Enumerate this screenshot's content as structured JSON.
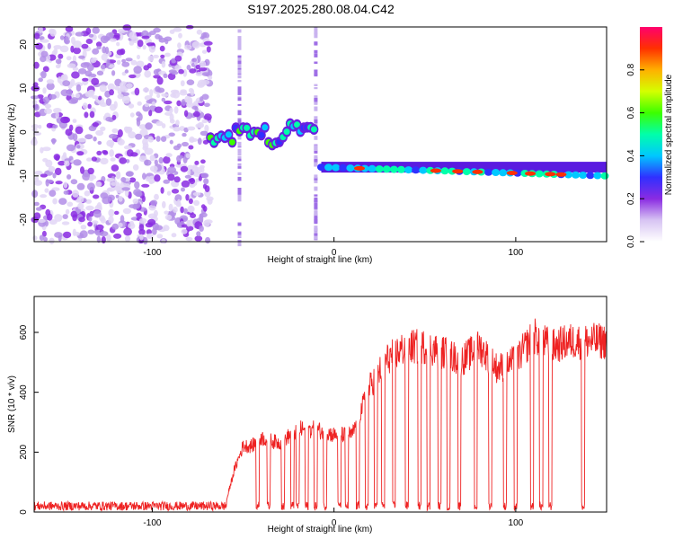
{
  "title": "S197.2025.280.08.04.C42",
  "chart_data": [
    {
      "type": "heatmap",
      "name": "spectrogram",
      "xlabel": "Height of straight line (km)",
      "ylabel": "Frequency (Hz)",
      "xlim": [
        -165,
        150
      ],
      "ylim": [
        -25,
        24
      ],
      "x_ticks": [
        "-100",
        "0",
        "100"
      ],
      "y_ticks": [
        "20",
        "10",
        "0",
        "-10",
        "-20"
      ],
      "colorbar": {
        "label": "Normalized spectral amplitude",
        "ticks": [
          "0.0",
          "0.2",
          "0.4",
          "0.6",
          "0.8"
        ],
        "range": [
          0,
          1
        ],
        "colors": [
          "#ffffff",
          "#d7c4f3",
          "#8a2be2",
          "#3030ff",
          "#00c8ff",
          "#00ffaa",
          "#3cff00",
          "#d4ff00",
          "#ffb000",
          "#ff3000",
          "#ff006e"
        ]
      },
      "noise_region_x": [
        -165,
        -68
      ],
      "spike_x": [
        -52,
        -10
      ],
      "segments": [
        {
          "x0": -68,
          "x1": -56,
          "freq": -1.5
        },
        {
          "x0": -54,
          "x1": -38,
          "freq": 0.2
        },
        {
          "x0": -36,
          "x1": -28,
          "freq": -2
        },
        {
          "x0": -26,
          "x1": -11,
          "freq": 1
        }
      ],
      "line_segment": {
        "x0": -7,
        "x1": 150,
        "freq_start": -8,
        "freq_end": -10
      },
      "hotspots_x": [
        14,
        56,
        68,
        79,
        98,
        108,
        119,
        125
      ]
    },
    {
      "type": "line",
      "name": "snr",
      "xlabel": "Height of straight line (km)",
      "ylabel": "SNR (10 * v/v)",
      "xlim": [
        -165,
        150
      ],
      "ylim": [
        0,
        720
      ],
      "x_ticks": [
        "-100",
        "0",
        "100"
      ],
      "y_ticks": [
        "0",
        "200",
        "400",
        "600"
      ],
      "series_color": "#ee2222",
      "noise_floor": [
        5,
        35
      ],
      "envelope": [
        {
          "x": -165,
          "y": 15
        },
        {
          "x": -60,
          "y": 20
        },
        {
          "x": -55,
          "y": 150
        },
        {
          "x": -50,
          "y": 240
        },
        {
          "x": -45,
          "y": 240
        },
        {
          "x": -40,
          "y": 270
        },
        {
          "x": -30,
          "y": 250
        },
        {
          "x": -20,
          "y": 300
        },
        {
          "x": -10,
          "y": 300
        },
        {
          "x": 0,
          "y": 280
        },
        {
          "x": 10,
          "y": 280
        },
        {
          "x": 20,
          "y": 460
        },
        {
          "x": 30,
          "y": 560
        },
        {
          "x": 40,
          "y": 600
        },
        {
          "x": 50,
          "y": 600
        },
        {
          "x": 60,
          "y": 580
        },
        {
          "x": 70,
          "y": 550
        },
        {
          "x": 80,
          "y": 600
        },
        {
          "x": 90,
          "y": 520
        },
        {
          "x": 100,
          "y": 550
        },
        {
          "x": 110,
          "y": 640
        },
        {
          "x": 120,
          "y": 600
        },
        {
          "x": 130,
          "y": 620
        },
        {
          "x": 150,
          "y": 620
        }
      ],
      "dropouts_x": [
        -42,
        -36,
        -28,
        -23,
        -20,
        -15,
        -10,
        -5,
        3,
        7,
        13,
        18,
        23,
        27,
        33,
        40,
        47,
        52,
        58,
        63,
        69,
        78,
        86,
        94,
        100,
        109,
        114,
        119,
        137
      ]
    }
  ]
}
